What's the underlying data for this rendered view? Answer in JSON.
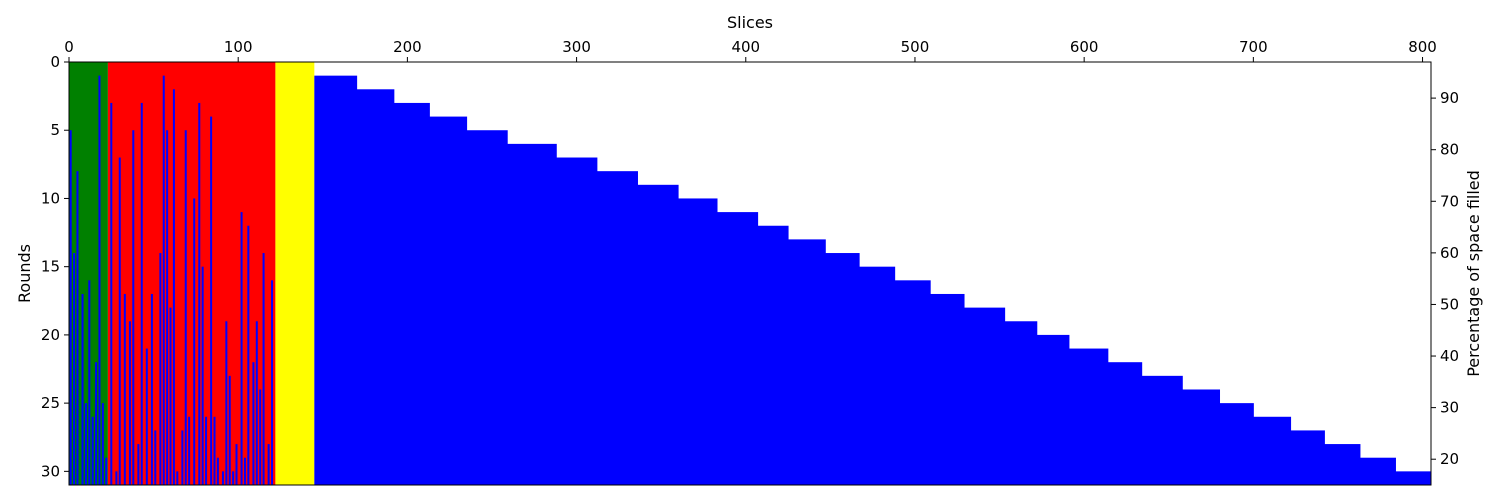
{
  "chart_data": {
    "type": "heatmap",
    "xlabel": "Slices",
    "ylabel": "Rounds",
    "y2label": "Percentage of space filled",
    "xlim": [
      0,
      805
    ],
    "ylim": [
      31,
      0
    ],
    "y2lim": [
      15,
      97
    ],
    "x_ticks": [
      "0",
      "100",
      "200",
      "300",
      "400",
      "500",
      "600",
      "700",
      "800"
    ],
    "y_ticks": [
      "0",
      "5",
      "10",
      "15",
      "20",
      "25",
      "30"
    ],
    "y2_ticks": [
      "20",
      "30",
      "40",
      "50",
      "60",
      "70",
      "80",
      "90"
    ],
    "colors": {
      "green": "#008000",
      "red": "#ff0000",
      "yellow": "#ffff00",
      "blue": "#0000ff"
    },
    "regions": [
      {
        "color": "green",
        "x_start": 0,
        "x_end": 23
      },
      {
        "color": "red",
        "x_start": 23,
        "x_end": 122
      },
      {
        "color": "yellow",
        "x_start": 122,
        "x_end": 145
      }
    ],
    "left_spikes": [
      {
        "x": 1,
        "round": 5
      },
      {
        "x": 3,
        "round": 14
      },
      {
        "x": 5,
        "round": 8
      },
      {
        "x": 8,
        "round": 17
      },
      {
        "x": 10,
        "round": 25
      },
      {
        "x": 12,
        "round": 16
      },
      {
        "x": 14,
        "round": 26
      },
      {
        "x": 16,
        "round": 22
      },
      {
        "x": 18,
        "round": 1
      },
      {
        "x": 20,
        "round": 25
      },
      {
        "x": 22,
        "round": 29
      },
      {
        "x": 25,
        "round": 3
      },
      {
        "x": 28,
        "round": 30
      },
      {
        "x": 30,
        "round": 7
      },
      {
        "x": 33,
        "round": 17
      },
      {
        "x": 36,
        "round": 19
      },
      {
        "x": 38,
        "round": 5
      },
      {
        "x": 41,
        "round": 28
      },
      {
        "x": 43,
        "round": 3
      },
      {
        "x": 46,
        "round": 21
      },
      {
        "x": 49,
        "round": 17
      },
      {
        "x": 51,
        "round": 27
      },
      {
        "x": 54,
        "round": 14
      },
      {
        "x": 56,
        "round": 1
      },
      {
        "x": 58,
        "round": 5
      },
      {
        "x": 60,
        "round": 18
      },
      {
        "x": 62,
        "round": 2
      },
      {
        "x": 64,
        "round": 30
      },
      {
        "x": 67,
        "round": 27
      },
      {
        "x": 69,
        "round": 5
      },
      {
        "x": 71,
        "round": 26
      },
      {
        "x": 74,
        "round": 10
      },
      {
        "x": 77,
        "round": 3
      },
      {
        "x": 79,
        "round": 15
      },
      {
        "x": 81,
        "round": 26
      },
      {
        "x": 84,
        "round": 4
      },
      {
        "x": 86,
        "round": 26
      },
      {
        "x": 88,
        "round": 29
      },
      {
        "x": 91,
        "round": 30
      },
      {
        "x": 93,
        "round": 19
      },
      {
        "x": 95,
        "round": 23
      },
      {
        "x": 97,
        "round": 30
      },
      {
        "x": 99,
        "round": 28
      },
      {
        "x": 102,
        "round": 11
      },
      {
        "x": 104,
        "round": 29
      },
      {
        "x": 106,
        "round": 12
      },
      {
        "x": 109,
        "round": 22
      },
      {
        "x": 111,
        "round": 19
      },
      {
        "x": 113,
        "round": 24
      },
      {
        "x": 115,
        "round": 14
      },
      {
        "x": 118,
        "round": 28
      },
      {
        "x": 120,
        "round": 16
      }
    ],
    "staircase": [
      {
        "x_start": 145,
        "x_end": 170,
        "round": 1
      },
      {
        "x_start": 170,
        "x_end": 192,
        "round": 2
      },
      {
        "x_start": 192,
        "x_end": 213,
        "round": 3
      },
      {
        "x_start": 213,
        "x_end": 235,
        "round": 4
      },
      {
        "x_start": 235,
        "x_end": 259,
        "round": 5
      },
      {
        "x_start": 259,
        "x_end": 288,
        "round": 6
      },
      {
        "x_start": 288,
        "x_end": 312,
        "round": 7
      },
      {
        "x_start": 312,
        "x_end": 336,
        "round": 8
      },
      {
        "x_start": 336,
        "x_end": 360,
        "round": 9
      },
      {
        "x_start": 360,
        "x_end": 383,
        "round": 10
      },
      {
        "x_start": 383,
        "x_end": 407,
        "round": 11
      },
      {
        "x_start": 407,
        "x_end": 425,
        "round": 12
      },
      {
        "x_start": 425,
        "x_end": 447,
        "round": 13
      },
      {
        "x_start": 447,
        "x_end": 467,
        "round": 14
      },
      {
        "x_start": 467,
        "x_end": 488,
        "round": 15
      },
      {
        "x_start": 488,
        "x_end": 509,
        "round": 16
      },
      {
        "x_start": 509,
        "x_end": 529,
        "round": 17
      },
      {
        "x_start": 529,
        "x_end": 553,
        "round": 18
      },
      {
        "x_start": 553,
        "x_end": 572,
        "round": 19
      },
      {
        "x_start": 572,
        "x_end": 591,
        "round": 20
      },
      {
        "x_start": 591,
        "x_end": 614,
        "round": 21
      },
      {
        "x_start": 614,
        "x_end": 634,
        "round": 22
      },
      {
        "x_start": 634,
        "x_end": 658,
        "round": 23
      },
      {
        "x_start": 658,
        "x_end": 680,
        "round": 24
      },
      {
        "x_start": 680,
        "x_end": 700,
        "round": 25
      },
      {
        "x_start": 700,
        "x_end": 722,
        "round": 26
      },
      {
        "x_start": 722,
        "x_end": 742,
        "round": 27
      },
      {
        "x_start": 742,
        "x_end": 763,
        "round": 28
      },
      {
        "x_start": 763,
        "x_end": 784,
        "round": 29
      },
      {
        "x_start": 784,
        "x_end": 805,
        "round": 30
      }
    ],
    "grid": false,
    "legend": "none"
  }
}
